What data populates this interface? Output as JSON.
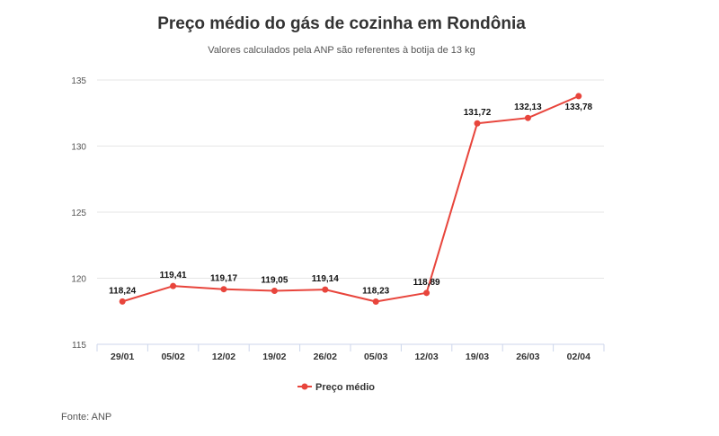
{
  "header": {
    "title": "Preço médio do gás de cozinha em Rondônia",
    "subtitle": "Valores calculados pela ANP são referentes à botija de 13 kg"
  },
  "footer": {
    "source": "Fonte: ANP"
  },
  "colors": {
    "series": "#e8453c",
    "grid": "#e6e6e6",
    "axis": "#ccd6eb"
  },
  "chart_data": {
    "type": "line",
    "categories": [
      "29/01",
      "05/02",
      "12/02",
      "19/02",
      "26/02",
      "05/03",
      "12/03",
      "19/03",
      "26/03",
      "02/04"
    ],
    "series": [
      {
        "name": "Preço médio",
        "values": [
          118.24,
          119.41,
          119.17,
          119.05,
          119.14,
          118.23,
          118.89,
          131.72,
          132.13,
          133.78
        ],
        "labels": [
          "118,24",
          "119,41",
          "119,17",
          "119,05",
          "119,14",
          "118,23",
          "118,89",
          "131,72",
          "132,13",
          "133,78"
        ]
      }
    ],
    "ylim": [
      115,
      135
    ],
    "yticks": [
      115,
      120,
      125,
      130,
      135
    ],
    "grid": true,
    "legend": "bottom-center",
    "xlabel": "",
    "ylabel": ""
  }
}
